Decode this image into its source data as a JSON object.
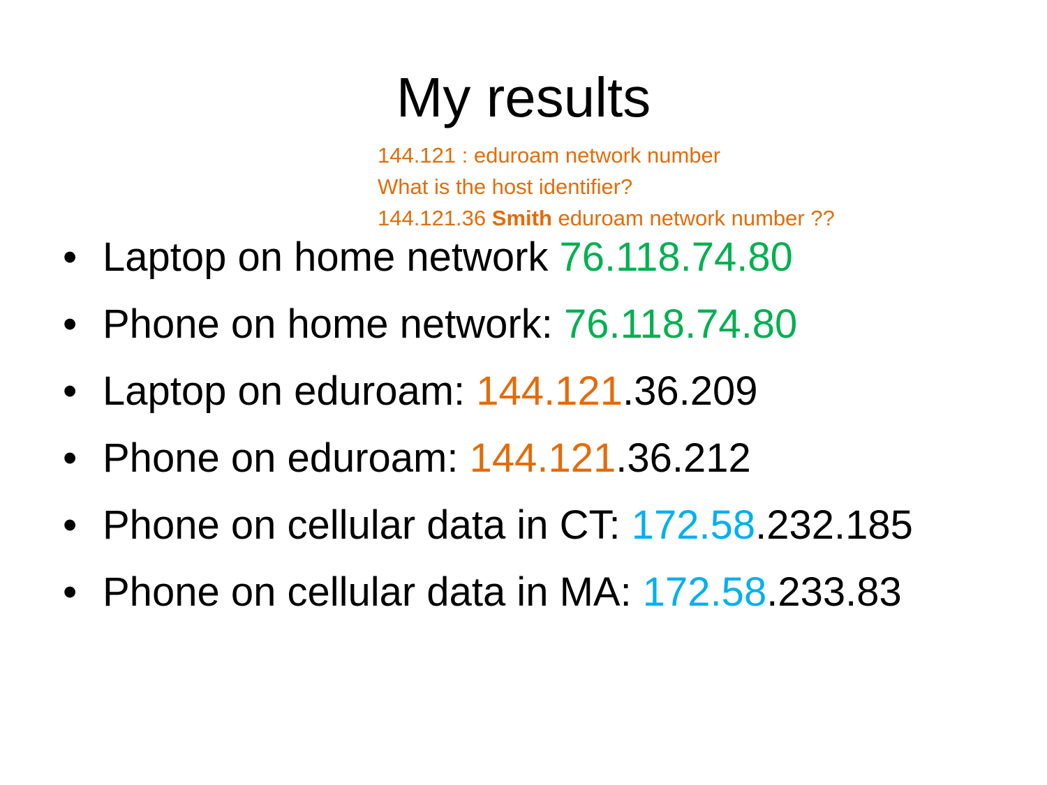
{
  "colors": {
    "text": "#000000",
    "green": "#00B050",
    "orange": "#E36C09",
    "blue": "#00B0F0"
  },
  "title": "My results",
  "note": {
    "line1": "144.121 : eduroam network number",
    "line2": "What is the host identifier?",
    "line3_prefix": "144.121.36 ",
    "line3_bold": "Smith",
    "line3_suffix": " eduroam network number ??"
  },
  "bullets": [
    {
      "label": "Laptop on home network ",
      "highlight": "76.118.74.80",
      "rest": "",
      "highlight_color": "green"
    },
    {
      "label": "Phone on home network: ",
      "highlight": "76.118.74.80",
      "rest": "",
      "highlight_color": "green"
    },
    {
      "label": "Laptop on eduroam: ",
      "highlight": "144.121",
      "rest": ".36.209",
      "highlight_color": "orange"
    },
    {
      "label": "Phone on eduroam: ",
      "highlight": "144.121",
      "rest": ".36.212",
      "highlight_color": "orange"
    },
    {
      "label": "Phone on cellular data in CT: ",
      "highlight": "172.58",
      "rest": ".232.185",
      "highlight_color": "blue"
    },
    {
      "label": "Phone on cellular data in MA: ",
      "highlight": "172.58",
      "rest": ".233.83",
      "highlight_color": "blue"
    }
  ]
}
